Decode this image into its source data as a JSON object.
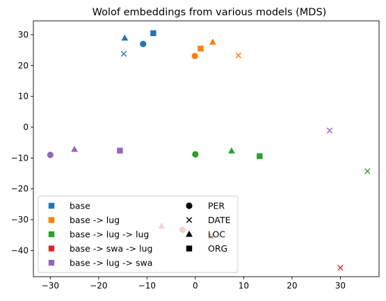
{
  "chart_data": {
    "type": "scatter",
    "title": "Wolof embeddings from various models (MDS)",
    "xlabel": "",
    "ylabel": "",
    "xlim": [
      -33.5,
      38
    ],
    "ylim": [
      -48.5,
      34.5
    ],
    "x_ticks": [
      -30,
      -20,
      -10,
      0,
      10,
      20,
      30
    ],
    "y_ticks": [
      -40,
      -30,
      -20,
      -10,
      0,
      10,
      20,
      30
    ],
    "x_tick_labels": [
      "−30",
      "−20",
      "−10",
      "0",
      "10",
      "20",
      "30"
    ],
    "y_tick_labels": [
      "−40",
      "−30",
      "−20",
      "−10",
      "0",
      "10",
      "20",
      "30"
    ],
    "grid": false,
    "legend_position": "lower-left",
    "models": [
      {
        "name": "base",
        "color": "#1f77b4"
      },
      {
        "name": "base -> lug",
        "color": "#ff7f0e"
      },
      {
        "name": "base -> lug -> lug",
        "color": "#2ca02c"
      },
      {
        "name": "base -> swa -> lug",
        "color": "#d62728"
      },
      {
        "name": "base -> lug -> swa",
        "color": "#9467bd"
      }
    ],
    "entity_types": [
      {
        "name": "PER",
        "marker": "circle"
      },
      {
        "name": "DATE",
        "marker": "x"
      },
      {
        "name": "LOC",
        "marker": "triangle"
      },
      {
        "name": "ORG",
        "marker": "square"
      }
    ],
    "points": [
      {
        "model": "base",
        "entity": "PER",
        "x": -10.8,
        "y": 27.0
      },
      {
        "model": "base",
        "entity": "DATE",
        "x": -14.8,
        "y": 23.8
      },
      {
        "model": "base",
        "entity": "LOC",
        "x": -14.6,
        "y": 28.9
      },
      {
        "model": "base",
        "entity": "ORG",
        "x": -8.7,
        "y": 30.5
      },
      {
        "model": "base -> lug",
        "entity": "PER",
        "x": -0.1,
        "y": 23.1
      },
      {
        "model": "base -> lug",
        "entity": "DATE",
        "x": 8.9,
        "y": 23.3
      },
      {
        "model": "base -> lug",
        "entity": "LOC",
        "x": 3.6,
        "y": 27.6
      },
      {
        "model": "base -> lug",
        "entity": "ORG",
        "x": 1.1,
        "y": 25.5
      },
      {
        "model": "base -> lug -> lug",
        "entity": "PER",
        "x": 0.0,
        "y": -8.8
      },
      {
        "model": "base -> lug -> lug",
        "entity": "DATE",
        "x": 35.6,
        "y": -14.3
      },
      {
        "model": "base -> lug -> lug",
        "entity": "LOC",
        "x": 7.5,
        "y": -7.7
      },
      {
        "model": "base -> lug -> lug",
        "entity": "ORG",
        "x": 13.3,
        "y": -9.4
      },
      {
        "model": "base -> swa -> lug",
        "entity": "PER",
        "x": -2.6,
        "y": -33.3
      },
      {
        "model": "base -> swa -> lug",
        "entity": "DATE",
        "x": 30.0,
        "y": -45.6
      },
      {
        "model": "base -> swa -> lug",
        "entity": "LOC",
        "x": -7.0,
        "y": -32.1
      },
      {
        "model": "base -> swa -> lug",
        "entity": "ORG",
        "x": 3.3,
        "y": -35.4
      },
      {
        "model": "base -> lug -> swa",
        "entity": "PER",
        "x": -30.0,
        "y": -9.0
      },
      {
        "model": "base -> lug -> swa",
        "entity": "DATE",
        "x": 27.8,
        "y": -1.1
      },
      {
        "model": "base -> lug -> swa",
        "entity": "LOC",
        "x": -25.0,
        "y": -7.2
      },
      {
        "model": "base -> lug -> swa",
        "entity": "ORG",
        "x": -15.6,
        "y": -7.6
      }
    ]
  }
}
